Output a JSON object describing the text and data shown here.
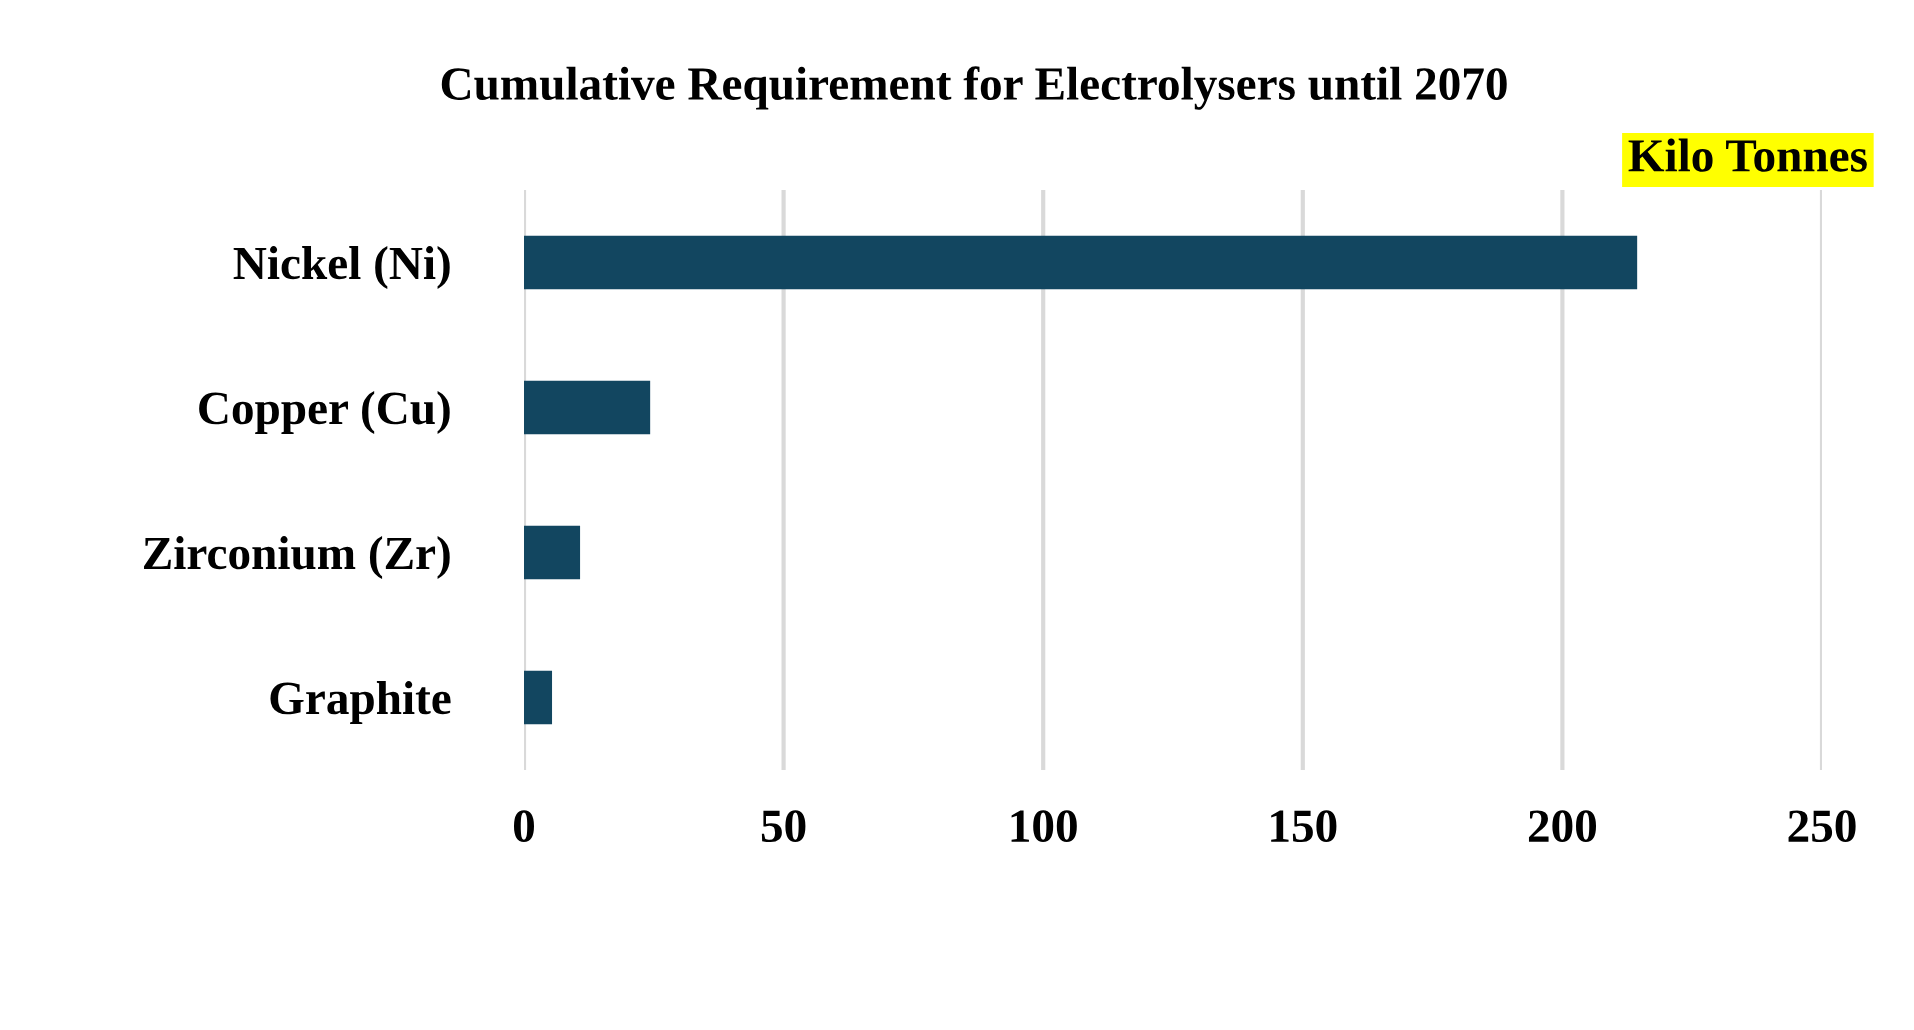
{
  "chart_data": {
    "type": "bar",
    "orientation": "horizontal",
    "title": "Cumulative Requirement for Electrolysers until 2070",
    "annotations": [
      "Kilo Tonnes"
    ],
    "categories": [
      "Nickel (Ni)",
      "Copper (Cu)",
      "Zirconium (Zr)",
      "Graphite"
    ],
    "values": [
      214.4,
      24.3,
      10.8,
      5.4
    ],
    "color": "#124660",
    "xlim": [
      0,
      250
    ],
    "xticks": [
      0,
      50,
      100,
      150,
      200,
      250
    ],
    "grid": "x"
  }
}
